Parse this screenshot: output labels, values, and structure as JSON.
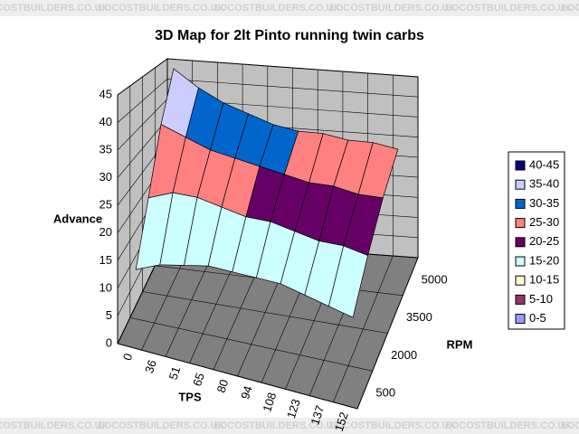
{
  "watermark": "LOCOSTBUILDERS.CO.UK",
  "chart_data": {
    "type": "surface",
    "title": "3D Map for 2lt Pinto running twin carbs",
    "y_label": "Advance",
    "x_label": "TPS",
    "z_label": "RPM",
    "categories": [
      "0",
      "36",
      "51",
      "65",
      "80",
      "94",
      "108",
      "123",
      "137",
      "152"
    ],
    "series": [
      {
        "name": "500",
        "values": [
          12,
          14,
          15,
          16,
          16,
          16,
          16,
          15,
          14,
          13
        ]
      },
      {
        "name": "2000",
        "values": [
          22,
          24,
          24,
          23,
          22,
          22,
          21,
          20,
          20,
          19
        ]
      },
      {
        "name": "3500",
        "values": [
          34,
          32,
          30,
          29,
          28,
          27,
          26,
          26,
          25,
          25
        ]
      },
      {
        "name": "5000",
        "values": [
          44,
          40,
          37,
          35,
          33,
          32,
          32,
          31,
          31,
          30
        ]
      }
    ],
    "ylim": [
      0,
      45
    ],
    "yticks": [
      0,
      5,
      10,
      15,
      20,
      25,
      30,
      35,
      40,
      45
    ],
    "legend": [
      {
        "label": "40-45",
        "color": "#000080"
      },
      {
        "label": "35-40",
        "color": "#ccccff"
      },
      {
        "label": "30-35",
        "color": "#0066cc"
      },
      {
        "label": "25-30",
        "color": "#ff8080"
      },
      {
        "label": "20-25",
        "color": "#660066"
      },
      {
        "label": "15-20",
        "color": "#ccffff"
      },
      {
        "label": "10-15",
        "color": "#ffffcc"
      },
      {
        "label": "5-10",
        "color": "#993366"
      },
      {
        "label": "0-5",
        "color": "#9999ff"
      }
    ]
  }
}
